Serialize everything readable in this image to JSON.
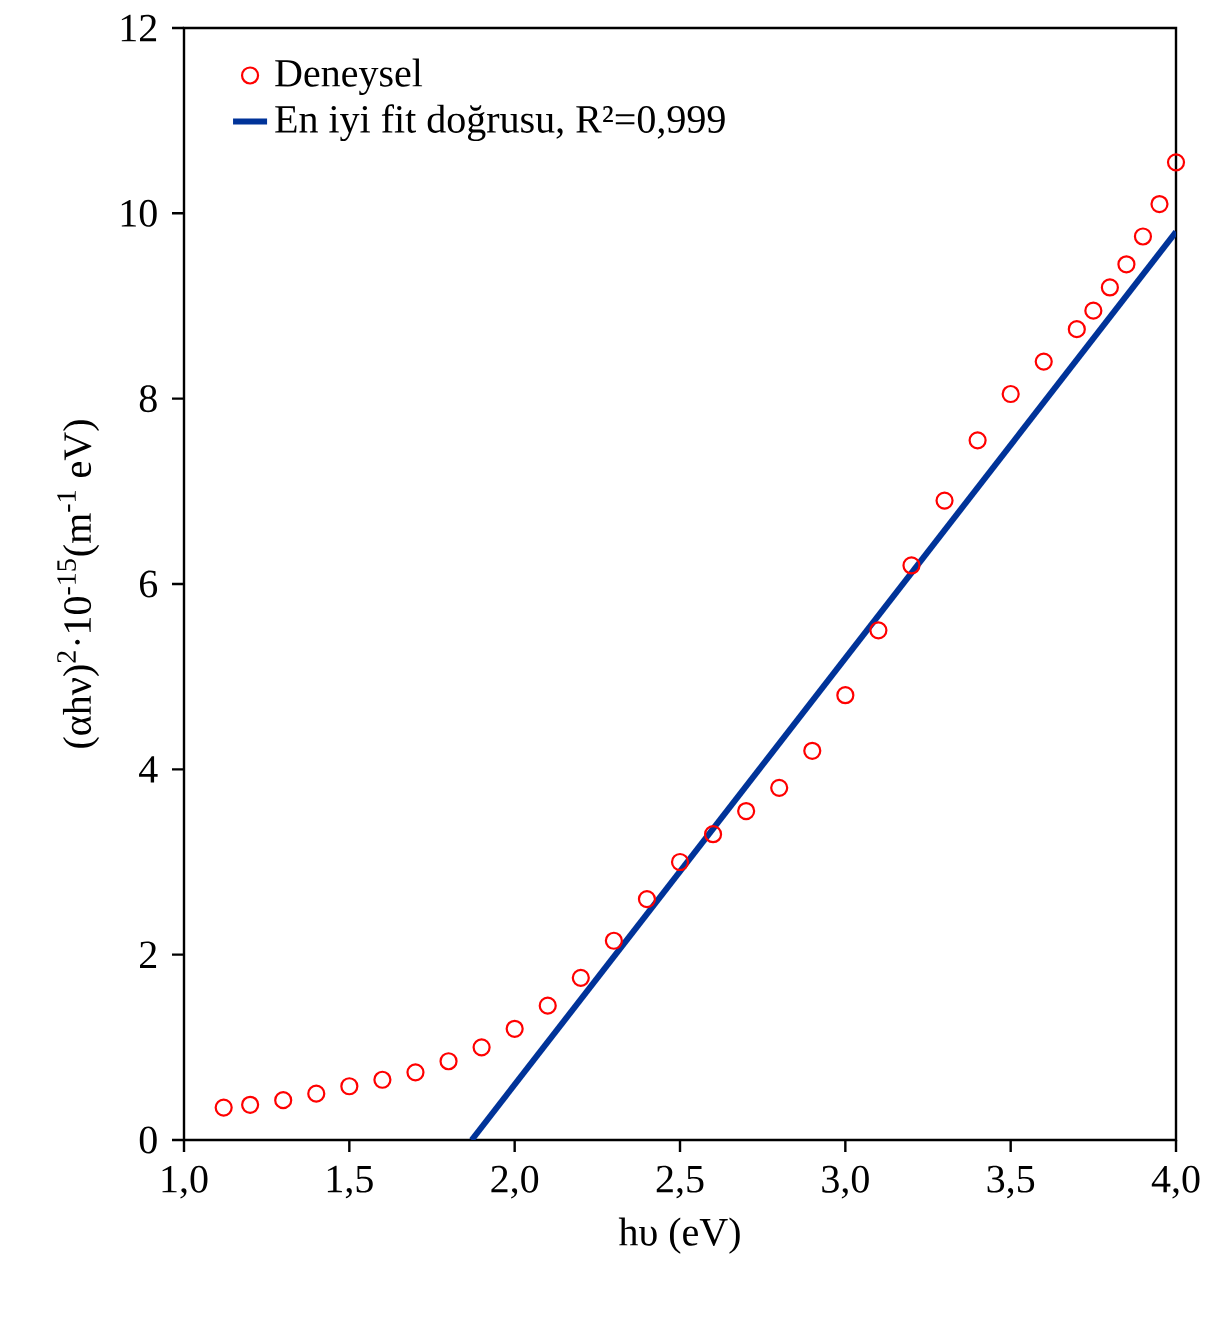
{
  "chart_data": {
    "type": "scatter",
    "xlabel": "hυ (eV)",
    "ylabel": "(αhν)$^{2}$·10$^{-15}$(m$^{-1}$ eV)",
    "xlim": [
      1.0,
      4.0
    ],
    "ylim": [
      0,
      12
    ],
    "xticks": [
      {
        "value": 1.0,
        "label": "1,0"
      },
      {
        "value": 1.5,
        "label": "1,5"
      },
      {
        "value": 2.0,
        "label": "2,0"
      },
      {
        "value": 2.5,
        "label": "2,5"
      },
      {
        "value": 3.0,
        "label": "3,0"
      },
      {
        "value": 3.5,
        "label": "3,5"
      },
      {
        "value": 4.0,
        "label": "4,0"
      }
    ],
    "yticks": [
      0,
      2,
      4,
      6,
      8,
      10,
      12
    ],
    "legend": "top left",
    "grid": false,
    "series": [
      {
        "name": "Deneysel",
        "marker": "circle",
        "color": "#ff0000",
        "x": [
          1.12,
          1.2,
          1.3,
          1.4,
          1.5,
          1.6,
          1.7,
          1.8,
          1.9,
          2.0,
          2.1,
          2.2,
          2.3,
          2.4,
          2.5,
          2.6,
          2.7,
          2.8,
          2.9,
          3.0,
          3.1,
          3.2,
          3.3,
          3.4,
          3.5,
          3.6,
          3.7,
          3.75,
          3.8,
          3.85,
          3.9,
          3.95,
          4.0
        ],
        "values": [
          0.35,
          0.38,
          0.43,
          0.5,
          0.58,
          0.65,
          0.73,
          0.85,
          1.0,
          1.2,
          1.45,
          1.75,
          2.15,
          2.6,
          3.0,
          3.3,
          3.55,
          3.8,
          4.2,
          4.8,
          5.5,
          6.2,
          6.9,
          7.55,
          8.05,
          8.4,
          8.75,
          8.95,
          9.2,
          9.45,
          9.75,
          10.1,
          10.55
        ]
      },
      {
        "name": "En iyi fit doğrusu, R²=0,999",
        "type": "line",
        "marker": "none",
        "line_style": "solid",
        "color": "#003399",
        "x": [
          1.87,
          4.0
        ],
        "values": [
          0,
          9.8
        ]
      }
    ]
  }
}
